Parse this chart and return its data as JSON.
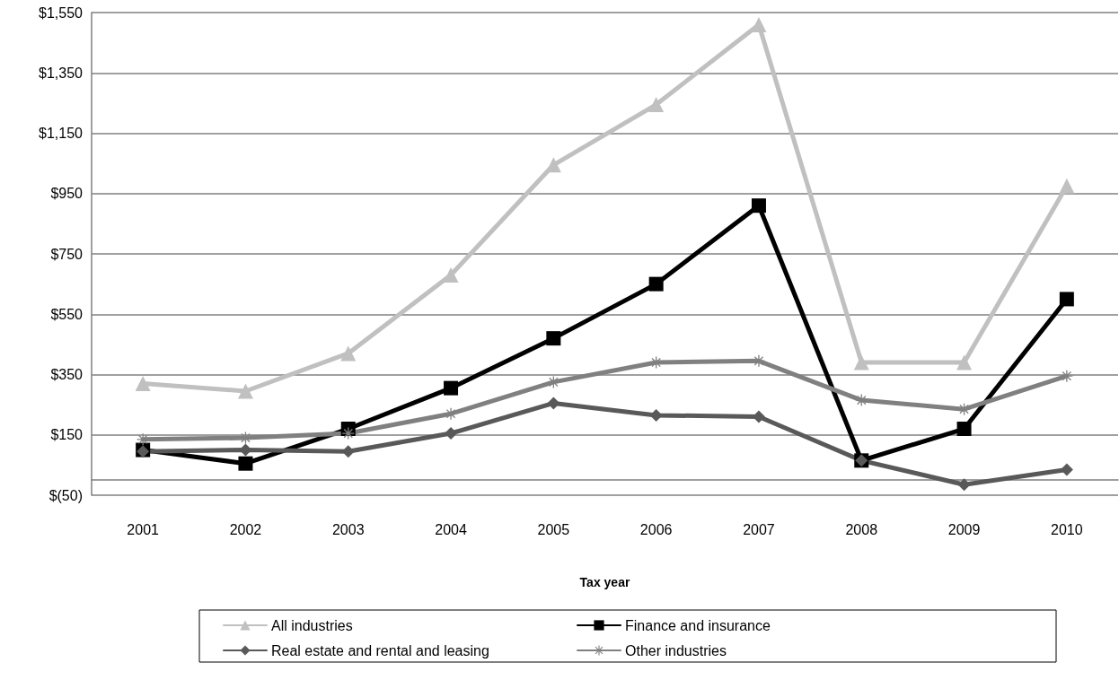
{
  "chart_data": {
    "type": "line",
    "xlabel": "Tax year",
    "categories": [
      "2001",
      "2002",
      "2003",
      "2004",
      "2005",
      "2006",
      "2007",
      "2008",
      "2009",
      "2010"
    ],
    "series": [
      {
        "name": "All industries",
        "color": "#c0c0c0",
        "marker": "triangle",
        "values": [
          320,
          295,
          420,
          680,
          1045,
          1245,
          1510,
          390,
          390,
          975
        ]
      },
      {
        "name": "Finance and insurance",
        "color": "#000000",
        "marker": "square",
        "values": [
          100,
          55,
          170,
          305,
          470,
          650,
          910,
          65,
          170,
          600
        ]
      },
      {
        "name": "Real estate and rental and leasing",
        "color": "#595959",
        "marker": "diamond",
        "values": [
          95,
          100,
          95,
          155,
          255,
          215,
          210,
          65,
          -15,
          35
        ]
      },
      {
        "name": "Other industries",
        "color": "#808080",
        "marker": "cross",
        "values": [
          135,
          140,
          155,
          220,
          325,
          390,
          395,
          265,
          235,
          345
        ]
      }
    ],
    "ylim": [
      -50,
      1550
    ],
    "yticks": [
      {
        "value": -50,
        "label": "$(50)"
      },
      {
        "value": 150,
        "label": "$150"
      },
      {
        "value": 350,
        "label": "$350"
      },
      {
        "value": 550,
        "label": "$550"
      },
      {
        "value": 750,
        "label": "$750"
      },
      {
        "value": 950,
        "label": "$950"
      },
      {
        "value": 1150,
        "label": "$1,150"
      },
      {
        "value": 1350,
        "label": "$1,350"
      },
      {
        "value": 1550,
        "label": "$1,550"
      }
    ],
    "grid": "y",
    "legend": "bottom",
    "line_style": "solid"
  }
}
